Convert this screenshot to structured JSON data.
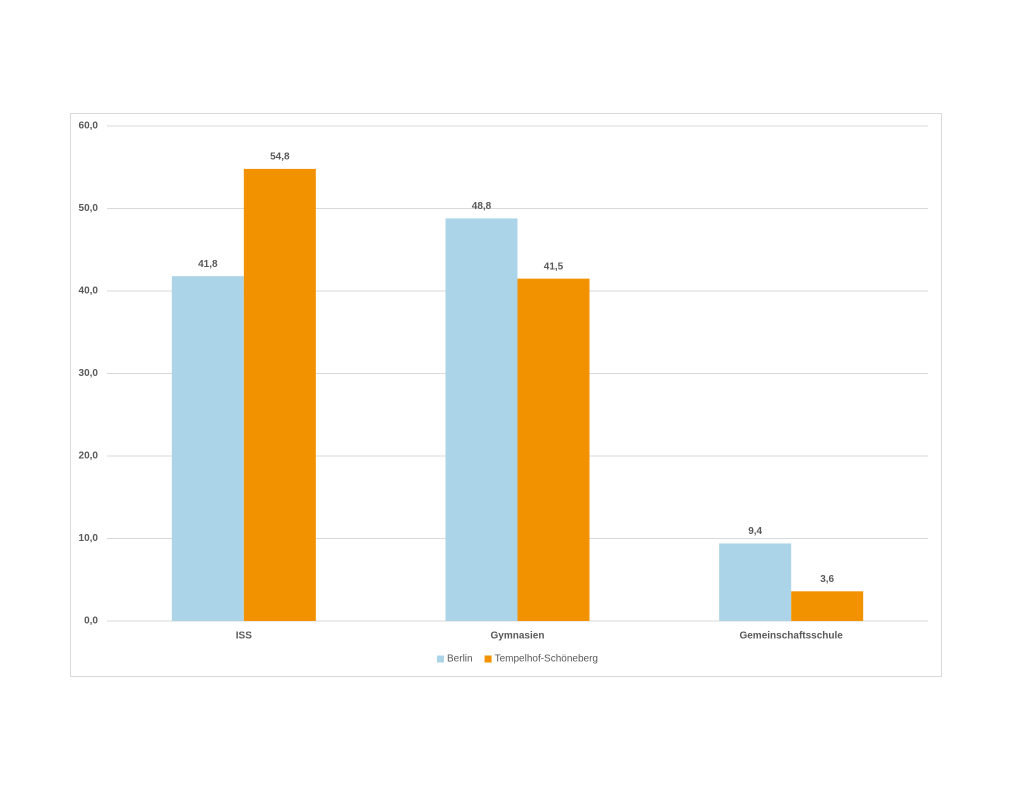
{
  "chart_data": {
    "type": "bar",
    "categories": [
      "ISS",
      "Gymnasien",
      "Gemeinschaftsschule"
    ],
    "series": [
      {
        "name": "Berlin",
        "color": "#abd4e9",
        "values": [
          41.8,
          48.8,
          9.4
        ],
        "value_labels": [
          "41,8",
          "48,8",
          "9,4"
        ]
      },
      {
        "name": "Tempelhof-Schöneberg",
        "color": "#f39200",
        "values": [
          54.8,
          41.5,
          3.6
        ],
        "value_labels": [
          "54,8",
          "41,5",
          "3,6"
        ]
      }
    ],
    "ylim": [
      0,
      60
    ],
    "yticks": [
      {
        "value": 0,
        "label": "0,0"
      },
      {
        "value": 10,
        "label": "10,0"
      },
      {
        "value": 20,
        "label": "20,0"
      },
      {
        "value": 30,
        "label": "30,0"
      },
      {
        "value": 40,
        "label": "40,0"
      },
      {
        "value": 50,
        "label": "50,0"
      },
      {
        "value": 60,
        "label": "60,0"
      }
    ],
    "grid": true,
    "legend": "bottom"
  }
}
